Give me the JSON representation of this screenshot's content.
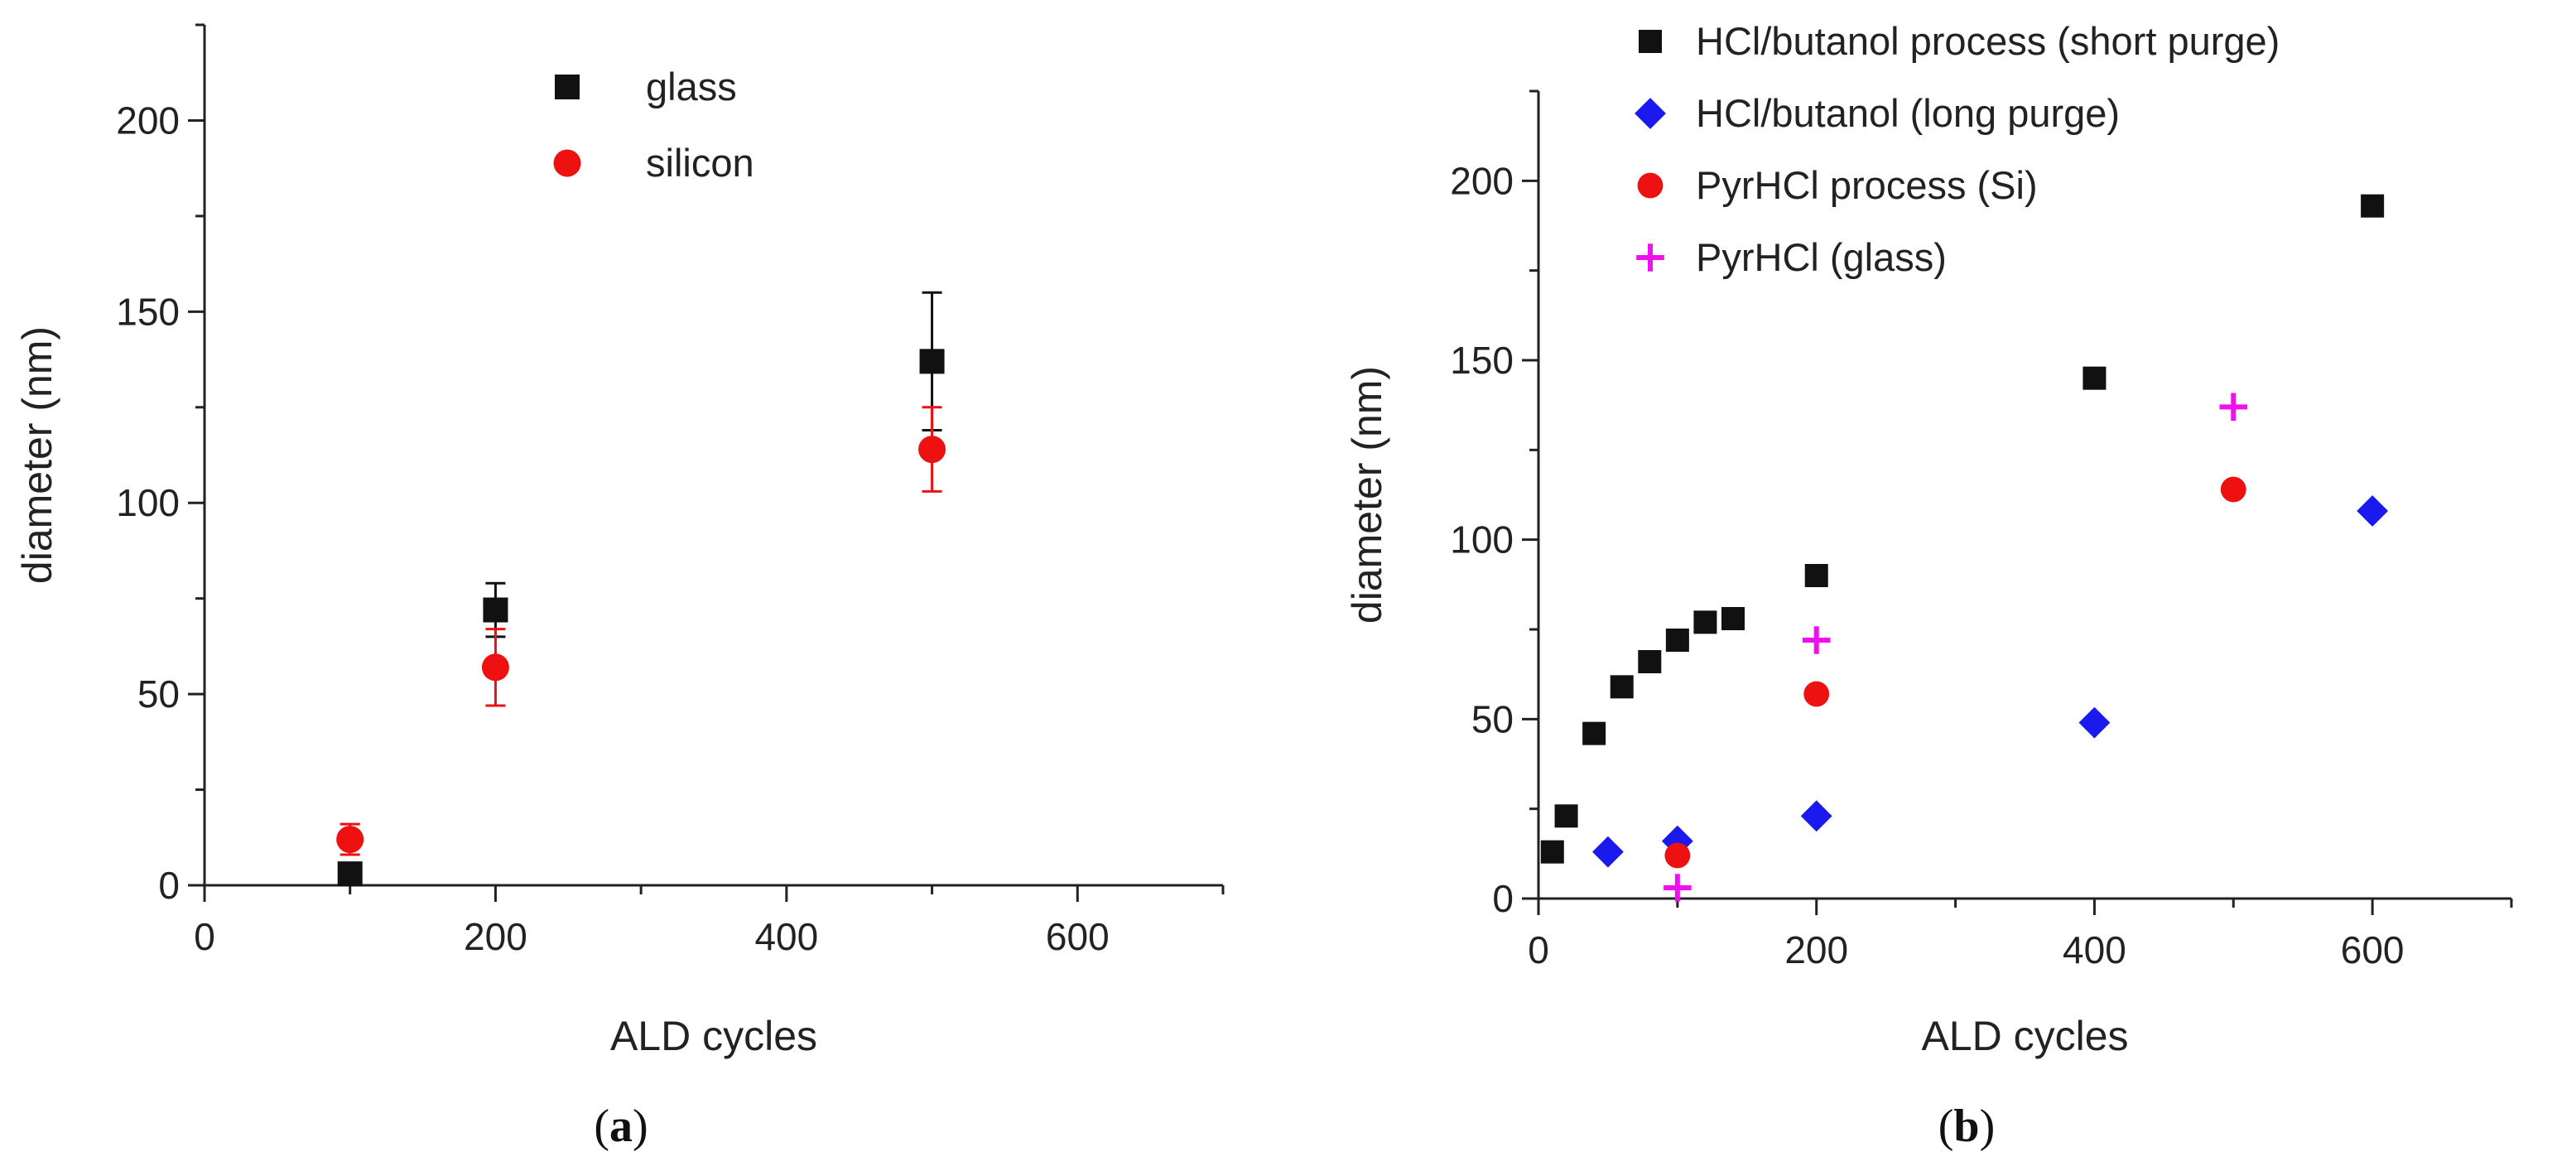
{
  "chart_data": [
    {
      "type": "scatter",
      "caption": "a",
      "title": "",
      "xlabel": "ALD cycles",
      "ylabel": "diameter (nm)",
      "xlim": [
        0,
        700
      ],
      "ylim": [
        0,
        225
      ],
      "xticks": [
        0,
        200,
        400,
        600
      ],
      "yticks": [
        0,
        50,
        100,
        150,
        200
      ],
      "legend_position": "top-center",
      "series": [
        {
          "name": "glass",
          "marker": "square",
          "color": "#111111",
          "points": [
            {
              "x": 100,
              "y": 3,
              "err": 0
            },
            {
              "x": 200,
              "y": 72,
              "err": 7
            },
            {
              "x": 500,
              "y": 137,
              "err": 18
            }
          ]
        },
        {
          "name": "silicon",
          "marker": "circle",
          "color": "#ee1111",
          "points": [
            {
              "x": 100,
              "y": 12,
              "err": 4
            },
            {
              "x": 200,
              "y": 57,
              "err": 10
            },
            {
              "x": 500,
              "y": 114,
              "err": 11
            }
          ]
        }
      ]
    },
    {
      "type": "scatter",
      "caption": "b",
      "title": "",
      "xlabel": "ALD cycles",
      "ylabel": "diameter (nm)",
      "xlim": [
        0,
        700
      ],
      "ylim": [
        0,
        225
      ],
      "xticks": [
        0,
        200,
        400,
        600
      ],
      "yticks": [
        0,
        50,
        100,
        150,
        200
      ],
      "legend_position": "top-left",
      "series": [
        {
          "name": "HCl/butanol process (short purge)",
          "marker": "square",
          "color": "#111111",
          "points": [
            {
              "x": 10,
              "y": 13
            },
            {
              "x": 20,
              "y": 23
            },
            {
              "x": 40,
              "y": 46
            },
            {
              "x": 60,
              "y": 59
            },
            {
              "x": 80,
              "y": 66
            },
            {
              "x": 100,
              "y": 72
            },
            {
              "x": 120,
              "y": 77
            },
            {
              "x": 140,
              "y": 78
            },
            {
              "x": 200,
              "y": 90
            },
            {
              "x": 400,
              "y": 145
            },
            {
              "x": 600,
              "y": 193
            }
          ]
        },
        {
          "name": "HCl/butanol (long purge)",
          "marker": "diamond",
          "color": "#1a1aee",
          "points": [
            {
              "x": 50,
              "y": 13
            },
            {
              "x": 100,
              "y": 16
            },
            {
              "x": 200,
              "y": 23
            },
            {
              "x": 400,
              "y": 49
            },
            {
              "x": 600,
              "y": 108
            }
          ]
        },
        {
          "name": "PyrHCl process (Si)",
          "marker": "circle",
          "color": "#ee1111",
          "points": [
            {
              "x": 100,
              "y": 12
            },
            {
              "x": 200,
              "y": 57
            },
            {
              "x": 500,
              "y": 114
            }
          ]
        },
        {
          "name": "PyrHCl (glass)",
          "marker": "plus",
          "color": "#ee11ee",
          "points": [
            {
              "x": 100,
              "y": 3
            },
            {
              "x": 200,
              "y": 72
            },
            {
              "x": 500,
              "y": 137
            }
          ]
        }
      ]
    }
  ]
}
